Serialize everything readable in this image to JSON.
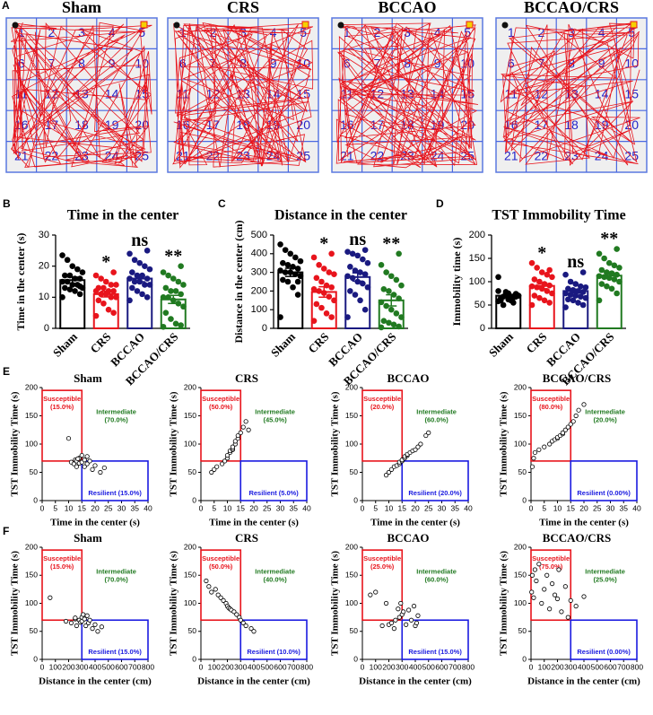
{
  "track_figure": {
    "panel": "A",
    "arenas": [
      "Sham",
      "CRS",
      "BCCAO",
      "BCCAO/CRS"
    ],
    "zones": [
      1,
      2,
      3,
      4,
      5,
      6,
      7,
      8,
      9,
      10,
      11,
      12,
      13,
      14,
      15,
      16,
      17,
      18,
      19,
      20,
      21,
      22,
      23,
      24,
      25
    ]
  },
  "chart_data": [
    {
      "type": "bar",
      "panel": "B",
      "title": "Time in the center",
      "ylabel": "Time in the center (s)",
      "categories": [
        "Sham",
        "CRS",
        "BCCAO",
        "BCCAO/CRS"
      ],
      "colors": [
        "#000000",
        "#e8141c",
        "#1a1a80",
        "#217a21"
      ],
      "values": [
        15.5,
        11,
        16,
        9.3
      ],
      "errors": [
        1,
        0.9,
        1,
        1.3
      ],
      "significance": [
        null,
        "*",
        "ns",
        "**"
      ],
      "points": [
        [
          10,
          11,
          12,
          12.5,
          13,
          13,
          14,
          14,
          15,
          15,
          16,
          16,
          17,
          17,
          18,
          19,
          20,
          22,
          23.5,
          13.5
        ],
        [
          4,
          5,
          6,
          8,
          9,
          10,
          10,
          11,
          11,
          12,
          12,
          12,
          13,
          13,
          14,
          14,
          15,
          16,
          17,
          18
        ],
        [
          9,
          10,
          11,
          12,
          13,
          14,
          14,
          15,
          15,
          16,
          16,
          17,
          17,
          18,
          19,
          20,
          21,
          22,
          24,
          25
        ],
        [
          0.5,
          1,
          1.5,
          3,
          5,
          7,
          8,
          9,
          10,
          10,
          11,
          12,
          12,
          13,
          14,
          15,
          16,
          17,
          18,
          20
        ]
      ],
      "ylim": [
        0,
        30
      ],
      "yticks": [
        0,
        10,
        20,
        30
      ]
    },
    {
      "type": "bar",
      "panel": "C",
      "title": "Distance in the center",
      "ylabel": "Distance in the center (cm)",
      "categories": [
        "Sham",
        "CRS",
        "BCCAO",
        "BCCAO/CRS"
      ],
      "colors": [
        "#000000",
        "#e8141c",
        "#1a1a80",
        "#217a21"
      ],
      "values": [
        300,
        195,
        275,
        150
      ],
      "errors": [
        22,
        28,
        22,
        30
      ],
      "significance": [
        null,
        "*",
        "ns",
        "**"
      ],
      "points": [
        [
          60,
          180,
          220,
          250,
          260,
          280,
          290,
          300,
          300,
          310,
          320,
          330,
          340,
          350,
          360,
          380,
          400,
          420,
          450,
          250
        ],
        [
          40,
          60,
          80,
          110,
          130,
          150,
          170,
          190,
          200,
          210,
          220,
          230,
          250,
          270,
          290,
          300,
          320,
          340,
          380,
          400
        ],
        [
          60,
          100,
          150,
          180,
          200,
          220,
          240,
          250,
          270,
          280,
          290,
          300,
          310,
          330,
          350,
          370,
          390,
          400,
          410,
          420
        ],
        [
          5,
          10,
          20,
          30,
          40,
          60,
          80,
          100,
          120,
          140,
          160,
          180,
          200,
          210,
          230,
          260,
          280,
          300,
          340,
          400
        ]
      ],
      "ylim": [
        0,
        500
      ],
      "yticks": [
        0,
        100,
        200,
        300,
        400,
        500
      ]
    },
    {
      "type": "bar",
      "panel": "D",
      "title": "TST Immobility Time",
      "ylabel": "Immobility time (s)",
      "categories": [
        "Sham",
        "CRS",
        "BCCAO",
        "BCCAO/CRS"
      ],
      "colors": [
        "#000000",
        "#e8141c",
        "#1a1a80",
        "#217a21"
      ],
      "values": [
        70,
        91,
        80,
        113
      ],
      "errors": [
        3,
        6,
        4,
        6
      ],
      "significance": [
        null,
        "*",
        "ns",
        "**"
      ],
      "points": [
        [
          110,
          68,
          65,
          72,
          60,
          70,
          66,
          75,
          68,
          80,
          72,
          60,
          78,
          65,
          70,
          55,
          62,
          50,
          58,
          74
        ],
        [
          50,
          55,
          60,
          65,
          70,
          75,
          80,
          85,
          88,
          90,
          92,
          95,
          100,
          105,
          110,
          115,
          120,
          130,
          140,
          125
        ],
        [
          45,
          50,
          55,
          60,
          62,
          65,
          68,
          70,
          72,
          75,
          78,
          80,
          82,
          85,
          88,
          90,
          95,
          100,
          115,
          120
        ],
        [
          60,
          75,
          85,
          90,
          95,
          100,
          105,
          108,
          110,
          112,
          115,
          118,
          120,
          125,
          130,
          135,
          140,
          150,
          160,
          170
        ]
      ],
      "ylim": [
        0,
        200
      ],
      "yticks": [
        0,
        50,
        100,
        150,
        200
      ]
    },
    {
      "type": "scatter",
      "panel": "E",
      "title": "Sham",
      "xlabel": "Time in the center (s)",
      "ylabel": "TST Immobility Time (s)",
      "x": [
        10,
        11,
        12,
        12.5,
        13,
        13,
        14,
        14,
        15,
        15,
        16,
        16,
        17,
        17,
        18,
        19,
        20,
        22,
        23.5,
        13.5
      ],
      "y": [
        110,
        68,
        65,
        72,
        60,
        70,
        66,
        75,
        68,
        80,
        72,
        60,
        78,
        65,
        70,
        55,
        62,
        50,
        58,
        74
      ],
      "xlim": [
        0,
        40
      ],
      "xticks": [
        0,
        5,
        10,
        15,
        20,
        25,
        30,
        35,
        40
      ],
      "ylim": [
        0,
        200
      ],
      "yticks": [
        0,
        50,
        100,
        150,
        200
      ],
      "regions": [
        {
          "name": "Susceptible",
          "label": "(15.0%)",
          "color": "#e8141c",
          "xlim": [
            0,
            15
          ],
          "ylim": [
            70,
            195
          ]
        },
        {
          "name": "Intermediate",
          "label": "(70.0%)",
          "color": "#217a21"
        },
        {
          "name": "Resilient",
          "label": "(15.0%)",
          "color": "#1a1ae0",
          "xlim": [
            15,
            40
          ],
          "ylim": [
            0,
            70
          ]
        }
      ]
    },
    {
      "type": "scatter",
      "title": "CRS",
      "xlabel": "Time in the center (s)",
      "ylabel": "TST Immobility Time (s)",
      "x": [
        4,
        5,
        6,
        8,
        9,
        10,
        10,
        11,
        11,
        12,
        12,
        12,
        13,
        13,
        14,
        14,
        15,
        16,
        17,
        18
      ],
      "y": [
        50,
        55,
        60,
        65,
        70,
        75,
        80,
        85,
        88,
        90,
        92,
        95,
        100,
        105,
        110,
        115,
        120,
        130,
        140,
        125
      ],
      "xlim": [
        0,
        40
      ],
      "xticks": [
        0,
        5,
        10,
        15,
        20,
        25,
        30,
        35,
        40
      ],
      "ylim": [
        0,
        200
      ],
      "yticks": [
        0,
        50,
        100,
        150,
        200
      ],
      "regions": [
        {
          "name": "Susceptible",
          "label": "(50.0%)",
          "color": "#e8141c",
          "xlim": [
            0,
            15
          ],
          "ylim": [
            70,
            195
          ]
        },
        {
          "name": "Intermediate",
          "label": "(45.0%)",
          "color": "#217a21"
        },
        {
          "name": "Resilient",
          "label": "(5.0%)",
          "color": "#1a1ae0",
          "xlim": [
            15,
            40
          ],
          "ylim": [
            0,
            70
          ]
        }
      ]
    },
    {
      "type": "scatter",
      "title": "BCCAO",
      "xlabel": "Time in the center (s)",
      "ylabel": "TST Immobility Time (s)",
      "x": [
        9,
        10,
        11,
        12,
        13,
        14,
        14,
        15,
        15,
        16,
        16,
        17,
        17,
        18,
        19,
        20,
        21,
        22,
        24,
        25
      ],
      "y": [
        45,
        50,
        55,
        60,
        62,
        65,
        68,
        70,
        72,
        75,
        78,
        80,
        82,
        85,
        88,
        90,
        95,
        100,
        115,
        120
      ],
      "xlim": [
        0,
        40
      ],
      "xticks": [
        0,
        5,
        10,
        15,
        20,
        25,
        30,
        35,
        40
      ],
      "ylim": [
        0,
        200
      ],
      "yticks": [
        0,
        50,
        100,
        150,
        200
      ],
      "regions": [
        {
          "name": "Susceptible",
          "label": "(20.0%)",
          "color": "#e8141c",
          "xlim": [
            0,
            15
          ],
          "ylim": [
            70,
            195
          ]
        },
        {
          "name": "Intermediate",
          "label": "(60.0%)",
          "color": "#217a21"
        },
        {
          "name": "Resilient",
          "label": "(20.0%)",
          "color": "#1a1ae0",
          "xlim": [
            15,
            40
          ],
          "ylim": [
            0,
            70
          ]
        }
      ]
    },
    {
      "type": "scatter",
      "title": "BCCAO/CRS",
      "xlabel": "Time in the center (s)",
      "ylabel": "TST Immobility Time (s)",
      "x": [
        0.5,
        1,
        1.5,
        3,
        5,
        7,
        8,
        9,
        10,
        10,
        11,
        12,
        12,
        13,
        14,
        15,
        16,
        17,
        18,
        20
      ],
      "y": [
        60,
        75,
        85,
        90,
        95,
        100,
        105,
        108,
        110,
        112,
        115,
        118,
        120,
        125,
        130,
        135,
        140,
        150,
        160,
        170
      ],
      "xlim": [
        0,
        40
      ],
      "xticks": [
        0,
        5,
        10,
        15,
        20,
        25,
        30,
        35,
        40
      ],
      "ylim": [
        0,
        200
      ],
      "yticks": [
        0,
        50,
        100,
        150,
        200
      ],
      "regions": [
        {
          "name": "Susceptible",
          "label": "(80.0%)",
          "color": "#e8141c",
          "xlim": [
            0,
            15
          ],
          "ylim": [
            70,
            195
          ]
        },
        {
          "name": "Intermediate",
          "label": "(20.0%)",
          "color": "#217a21"
        },
        {
          "name": "Resilient",
          "label": "(0.00%)",
          "color": "#1a1ae0",
          "xlim": [
            15,
            40
          ],
          "ylim": [
            0,
            70
          ]
        }
      ]
    },
    {
      "type": "scatter",
      "panel": "F",
      "title": "Sham",
      "xlabel": "Distance in the center (cm)",
      "ylabel": "TST Immobility Time (s)",
      "x": [
        60,
        180,
        220,
        250,
        260,
        280,
        290,
        300,
        300,
        310,
        320,
        330,
        340,
        350,
        360,
        380,
        400,
        420,
        450,
        250
      ],
      "y": [
        110,
        68,
        65,
        72,
        60,
        70,
        66,
        75,
        68,
        80,
        72,
        60,
        78,
        65,
        70,
        55,
        62,
        50,
        58,
        74
      ],
      "xlim": [
        0,
        800
      ],
      "xticks": [
        0,
        100,
        200,
        300,
        400,
        500,
        600,
        700,
        800
      ],
      "ylim": [
        0,
        200
      ],
      "yticks": [
        0,
        50,
        100,
        150,
        200
      ],
      "regions": [
        {
          "name": "Susceptible",
          "label": "(15.0%)",
          "color": "#e8141c",
          "xlim": [
            0,
            300
          ],
          "ylim": [
            70,
            195
          ]
        },
        {
          "name": "Intermediate",
          "label": "(70.0%)",
          "color": "#217a21"
        },
        {
          "name": "Resilient",
          "label": "(15.0%)",
          "color": "#1a1ae0",
          "xlim": [
            300,
            800
          ],
          "ylim": [
            0,
            70
          ]
        }
      ]
    },
    {
      "type": "scatter",
      "title": "CRS",
      "xlabel": "Distance in the center (cm)",
      "ylabel": "TST Immobility Time (s)",
      "x": [
        40,
        60,
        80,
        110,
        130,
        150,
        170,
        190,
        200,
        210,
        220,
        230,
        250,
        270,
        290,
        300,
        320,
        340,
        380,
        400
      ],
      "y": [
        140,
        130,
        120,
        125,
        115,
        110,
        105,
        100,
        95,
        92,
        90,
        88,
        85,
        80,
        75,
        70,
        65,
        60,
        55,
        50
      ],
      "xlim": [
        0,
        800
      ],
      "xticks": [
        0,
        100,
        200,
        300,
        400,
        500,
        600,
        700,
        800
      ],
      "ylim": [
        0,
        200
      ],
      "yticks": [
        0,
        50,
        100,
        150,
        200
      ],
      "regions": [
        {
          "name": "Susceptible",
          "label": "(50.0%)",
          "color": "#e8141c",
          "xlim": [
            0,
            300
          ],
          "ylim": [
            70,
            195
          ]
        },
        {
          "name": "Intermediate",
          "label": "(40.0%)",
          "color": "#217a21"
        },
        {
          "name": "Resilient",
          "label": "(10.0%)",
          "color": "#1a1ae0",
          "xlim": [
            300,
            800
          ],
          "ylim": [
            0,
            70
          ]
        }
      ]
    },
    {
      "type": "scatter",
      "title": "BCCAO",
      "xlabel": "Distance in the center (cm)",
      "ylabel": "TST Immobility Time (s)",
      "x": [
        60,
        100,
        150,
        180,
        200,
        220,
        240,
        250,
        270,
        280,
        290,
        300,
        310,
        330,
        350,
        370,
        390,
        400,
        410,
        420
      ],
      "y": [
        115,
        120,
        60,
        100,
        62,
        65,
        55,
        70,
        90,
        75,
        100,
        80,
        85,
        62,
        88,
        70,
        95,
        60,
        65,
        78
      ],
      "xlim": [
        0,
        800
      ],
      "xticks": [
        0,
        100,
        200,
        300,
        400,
        500,
        600,
        700,
        800
      ],
      "ylim": [
        0,
        200
      ],
      "yticks": [
        0,
        50,
        100,
        150,
        200
      ],
      "regions": [
        {
          "name": "Susceptible",
          "label": "(25.0%)",
          "color": "#e8141c",
          "xlim": [
            0,
            300
          ],
          "ylim": [
            70,
            195
          ]
        },
        {
          "name": "Intermediate",
          "label": "(60.0%)",
          "color": "#217a21"
        },
        {
          "name": "Resilient",
          "label": "(15.0%)",
          "color": "#1a1ae0",
          "xlim": [
            300,
            800
          ],
          "ylim": [
            0,
            70
          ]
        }
      ]
    },
    {
      "type": "scatter",
      "title": "BCCAO/CRS",
      "xlabel": "Distance in the center (cm)",
      "ylabel": "TST Immobility Time (s)",
      "x": [
        5,
        10,
        20,
        30,
        40,
        60,
        80,
        100,
        120,
        140,
        160,
        180,
        200,
        210,
        230,
        260,
        280,
        300,
        340,
        400
      ],
      "y": [
        120,
        150,
        110,
        160,
        140,
        170,
        100,
        125,
        150,
        90,
        135,
        115,
        108,
        160,
        85,
        130,
        75,
        105,
        95,
        112
      ],
      "xlim": [
        0,
        800
      ],
      "xticks": [
        0,
        100,
        200,
        300,
        400,
        500,
        600,
        700,
        800
      ],
      "ylim": [
        0,
        200
      ],
      "yticks": [
        0,
        50,
        100,
        150,
        200
      ],
      "regions": [
        {
          "name": "Susceptible",
          "label": "(75.0%)",
          "color": "#e8141c",
          "xlim": [
            0,
            300
          ],
          "ylim": [
            70,
            195
          ]
        },
        {
          "name": "Intermediate",
          "label": "(25.0%)",
          "color": "#217a21"
        },
        {
          "name": "Resilient",
          "label": "(0.00%)",
          "color": "#1a1ae0",
          "xlim": [
            300,
            800
          ],
          "ylim": [
            0,
            70
          ]
        }
      ]
    }
  ]
}
